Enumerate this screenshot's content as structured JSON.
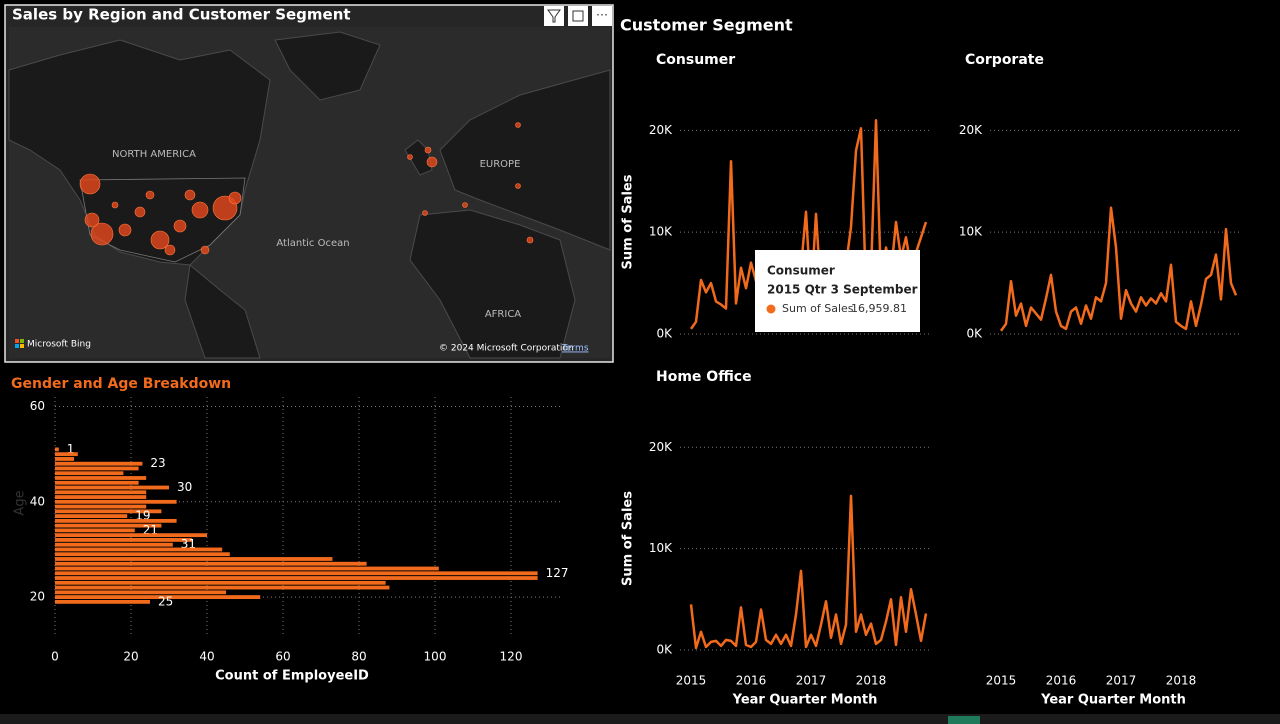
{
  "section_title": "Customer Segment",
  "map": {
    "title": "Sales by Region and Customer Segment",
    "labels": [
      "NORTH AMERICA",
      "EUROPE",
      "Atlantic Ocean",
      "AFRICA"
    ],
    "brand": "Microsoft Bing",
    "copyright": "© 2024 Microsoft Corporation",
    "terms": "Terms"
  },
  "tooltip": {
    "title": "Consumer",
    "period": "2015 Qtr 3 September",
    "measure": "Sum of Sales",
    "value": "16,959.81"
  },
  "chart_data": [
    {
      "type": "hbar",
      "title": "Gender and Age Breakdown",
      "xlabel": "Count of EmployeeID",
      "ylabel": "Age",
      "color": "#f26b1d",
      "y": [
        51,
        50,
        49,
        48,
        47,
        46,
        45,
        44,
        43,
        42,
        41,
        40,
        39,
        38,
        37,
        36,
        35,
        34,
        33,
        32,
        31,
        30,
        29,
        28,
        27,
        26,
        25,
        24,
        23,
        22,
        21,
        20,
        19
      ],
      "values": [
        1,
        6,
        5,
        23,
        22,
        18,
        24,
        22,
        30,
        24,
        24,
        32,
        24,
        28,
        19,
        32,
        28,
        21,
        40,
        36,
        31,
        44,
        46,
        73,
        82,
        101,
        127,
        127,
        87,
        88,
        45,
        54,
        25
      ],
      "value_labels": [
        "1",
        null,
        null,
        "23",
        null,
        null,
        null,
        null,
        "30",
        null,
        null,
        null,
        null,
        null,
        "19",
        null,
        null,
        "21",
        null,
        null,
        "31",
        null,
        null,
        null,
        null,
        null,
        "127",
        null,
        null,
        null,
        null,
        null,
        "25"
      ],
      "xlim": [
        0,
        130
      ],
      "xticks": [
        0,
        20,
        40,
        60,
        80,
        100,
        120
      ],
      "ylim": [
        17.5,
        62
      ],
      "yticks": [
        20,
        40,
        60
      ],
      "grid": true
    },
    {
      "type": "line",
      "title": "Consumer",
      "ylabel": "Sum of Sales",
      "color": "#f26b1d",
      "values": [
        500,
        1200,
        5300,
        4100,
        5000,
        3200,
        2900,
        2500,
        16960,
        3000,
        6500,
        4500,
        7000,
        5200,
        4000,
        6000,
        3500,
        5500,
        4800,
        6200,
        5000,
        8000,
        6500,
        12000,
        3500,
        11800,
        4000,
        6000,
        5500,
        7000,
        4200,
        6800,
        10500,
        18000,
        20200,
        4000,
        6000,
        21000,
        5000,
        8500,
        6000,
        11000,
        7500,
        9500,
        6500,
        8000,
        9500,
        11000
      ],
      "ylim": [
        0,
        22000
      ],
      "yticks": [
        {
          "value": 0,
          "label": "0K"
        },
        {
          "value": 10000,
          "label": "10K"
        },
        {
          "value": 20000,
          "label": "20K"
        }
      ],
      "grid": true
    },
    {
      "type": "line",
      "title": "Corporate",
      "xlabel": "Year Quarter Month",
      "color": "#f26b1d",
      "categories": [
        "2015",
        null,
        null,
        null,
        null,
        null,
        null,
        null,
        null,
        null,
        null,
        null,
        "2016",
        null,
        null,
        null,
        null,
        null,
        null,
        null,
        null,
        null,
        null,
        null,
        "2017",
        null,
        null,
        null,
        null,
        null,
        null,
        null,
        null,
        null,
        null,
        null,
        "2018",
        null,
        null,
        null,
        null,
        null,
        null,
        null,
        null,
        null,
        null,
        null
      ],
      "values": [
        300,
        1000,
        5200,
        1800,
        3000,
        800,
        2600,
        2000,
        1400,
        3500,
        5800,
        2200,
        800,
        500,
        2200,
        2600,
        1000,
        2800,
        1500,
        3600,
        3200,
        5000,
        12400,
        8500,
        1500,
        4300,
        3000,
        2200,
        3600,
        2800,
        3500,
        3000,
        4000,
        3200,
        6800,
        1200,
        800,
        500,
        3200,
        800,
        2900,
        5400,
        5800,
        7800,
        3400,
        10300,
        5000,
        3800
      ],
      "ylim": [
        0,
        22000
      ],
      "yticks": [
        {
          "value": 0,
          "label": "0K"
        },
        {
          "value": 10000,
          "label": "10K"
        },
        {
          "value": 20000,
          "label": "20K"
        }
      ],
      "grid": true
    },
    {
      "type": "line",
      "title": "Home Office",
      "xlabel": "Year Quarter Month",
      "ylabel": "Sum of Sales",
      "color": "#f26b1d",
      "categories": [
        "2015",
        null,
        null,
        null,
        null,
        null,
        null,
        null,
        null,
        null,
        null,
        null,
        "2016",
        null,
        null,
        null,
        null,
        null,
        null,
        null,
        null,
        null,
        null,
        null,
        "2017",
        null,
        null,
        null,
        null,
        null,
        null,
        null,
        null,
        null,
        null,
        null,
        "2018",
        null,
        null,
        null,
        null,
        null,
        null,
        null,
        null,
        null,
        null,
        null
      ],
      "values": [
        4500,
        200,
        1800,
        300,
        800,
        900,
        400,
        1000,
        900,
        400,
        4200,
        500,
        300,
        800,
        4000,
        1000,
        600,
        1500,
        600,
        1500,
        400,
        3500,
        7800,
        300,
        1500,
        400,
        2500,
        4800,
        1200,
        3500,
        600,
        2500,
        15200,
        1800,
        3500,
        1500,
        2600,
        600,
        1000,
        2800,
        5000,
        500,
        5200,
        1800,
        6000,
        3500,
        900,
        3600
      ],
      "ylim": [
        0,
        22000
      ],
      "yticks": [
        {
          "value": 0,
          "label": "0K"
        },
        {
          "value": 10000,
          "label": "10K"
        },
        {
          "value": 20000,
          "label": "20K"
        }
      ],
      "grid": true
    }
  ]
}
